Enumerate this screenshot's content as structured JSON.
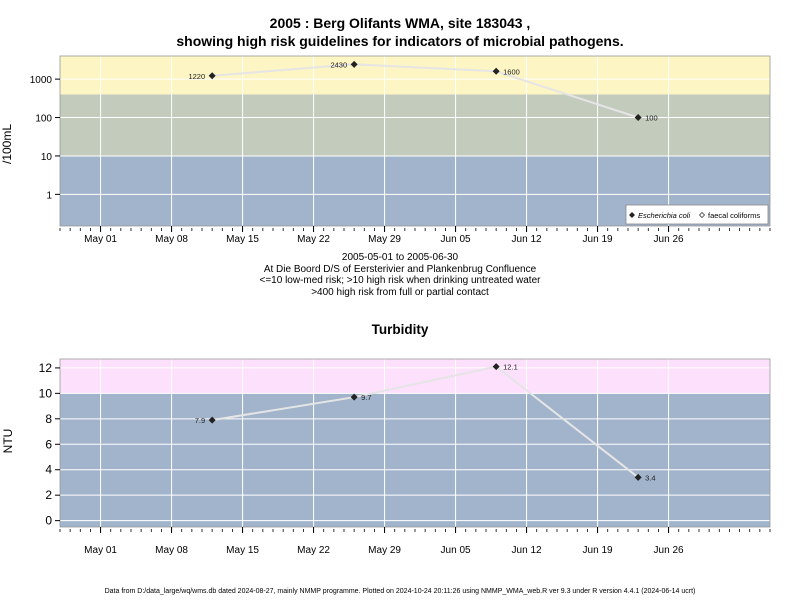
{
  "titles": {
    "main1": "2005 : Berg Olifants WMA, site 183043 ,",
    "main2": "showing high risk guidelines for indicators of microbial pathogens.",
    "turbidity": "Turbidity"
  },
  "info": [
    "2005-05-01 to 2005-06-30",
    "At Die Boord D/S of Eersterivier and Plankenbrug Confluence",
    "<=10 low-med risk; >10 high risk when drinking untreated water",
    ">400 high risk from full or partial contact"
  ],
  "footer": "Data from D:/data_large/wq/wms.db dated 2024-08-27, mainly NMMP programme. Plotted on 2024-10-24 20:11:26 using NMMP_WMA_web.R ver 9.3 under R version 4.4.1 (2024-06-14 ucrt)",
  "colors": {
    "low_band": "#a2b4cc",
    "mid_band": "#c3cbbd",
    "high_band_micro": "#fdf5c3",
    "high_band_turb": "#fde0fc",
    "grid": "#ffffff",
    "line": "#e5e5e5",
    "marker": "#222222"
  },
  "chart_data": [
    {
      "type": "line",
      "ylabel": "/100mL",
      "yscale": "log",
      "yticks": [
        1,
        10,
        100,
        1000
      ],
      "ytick_labels": [
        "1",
        "10",
        "100",
        "1000"
      ],
      "ylim": [
        0.15,
        4000
      ],
      "xlim": [
        "2005-04-27",
        "2005-07-06"
      ],
      "xtick_labels": [
        "May 01",
        "May 08",
        "May 15",
        "May 22",
        "May 29",
        "Jun 05",
        "Jun 12",
        "Jun 19",
        "Jun 26"
      ],
      "xtick_dates": [
        "2005-05-01",
        "2005-05-08",
        "2005-05-15",
        "2005-05-22",
        "2005-05-29",
        "2005-06-05",
        "2005-06-12",
        "2005-06-19",
        "2005-06-26"
      ],
      "bands": [
        {
          "from": 0.15,
          "to": 10,
          "color": "#a2b4cc"
        },
        {
          "from": 10,
          "to": 400,
          "color": "#c3cbbd"
        },
        {
          "from": 400,
          "to": 4000,
          "color": "#fdf5c3"
        }
      ],
      "series": [
        {
          "name": "Escherichia coli",
          "marker": "filled-diamond",
          "x": [
            "2005-05-12",
            "2005-05-26",
            "2005-06-09",
            "2005-06-23"
          ],
          "y": [
            1220,
            2430,
            1600,
            100
          ],
          "labels": [
            "1220",
            "2430",
            "1600",
            "100"
          ],
          "label_side": [
            "left",
            "left",
            "right",
            "right"
          ]
        }
      ],
      "legend": {
        "position": "bottom-right",
        "entries": [
          {
            "label": "Escherichia coli",
            "marker": "filled-diamond",
            "italic": true
          },
          {
            "label": "faecal coliforms",
            "marker": "open-diamond",
            "italic": false
          }
        ]
      },
      "grid": true
    },
    {
      "type": "line",
      "title": "Turbidity",
      "ylabel": "NTU",
      "yscale": "linear",
      "yticks": [
        0,
        2,
        4,
        6,
        8,
        10,
        12
      ],
      "ytick_labels": [
        "0",
        "2",
        "4",
        "6",
        "8",
        "10",
        "12"
      ],
      "ylim": [
        -0.5,
        12.7
      ],
      "xlim": [
        "2005-04-27",
        "2005-07-06"
      ],
      "xtick_labels": [
        "May 01",
        "May 08",
        "May 15",
        "May 22",
        "May 29",
        "Jun 05",
        "Jun 12",
        "Jun 19",
        "Jun 26"
      ],
      "xtick_dates": [
        "2005-05-01",
        "2005-05-08",
        "2005-05-15",
        "2005-05-22",
        "2005-05-29",
        "2005-06-05",
        "2005-06-12",
        "2005-06-19",
        "2005-06-26"
      ],
      "bands": [
        {
          "from": -0.5,
          "to": 10,
          "color": "#a2b4cc"
        },
        {
          "from": 10,
          "to": 12.7,
          "color": "#fde0fc"
        }
      ],
      "series": [
        {
          "name": "",
          "marker": "filled-diamond",
          "x": [
            "2005-05-12",
            "2005-05-26",
            "2005-06-09",
            "2005-06-23"
          ],
          "y": [
            7.9,
            9.7,
            12.1,
            3.4
          ],
          "labels": [
            "7.9",
            "9.7",
            "12.1",
            "3.4"
          ],
          "label_side": [
            "left",
            "right",
            "right",
            "right"
          ]
        }
      ],
      "grid": true
    }
  ]
}
